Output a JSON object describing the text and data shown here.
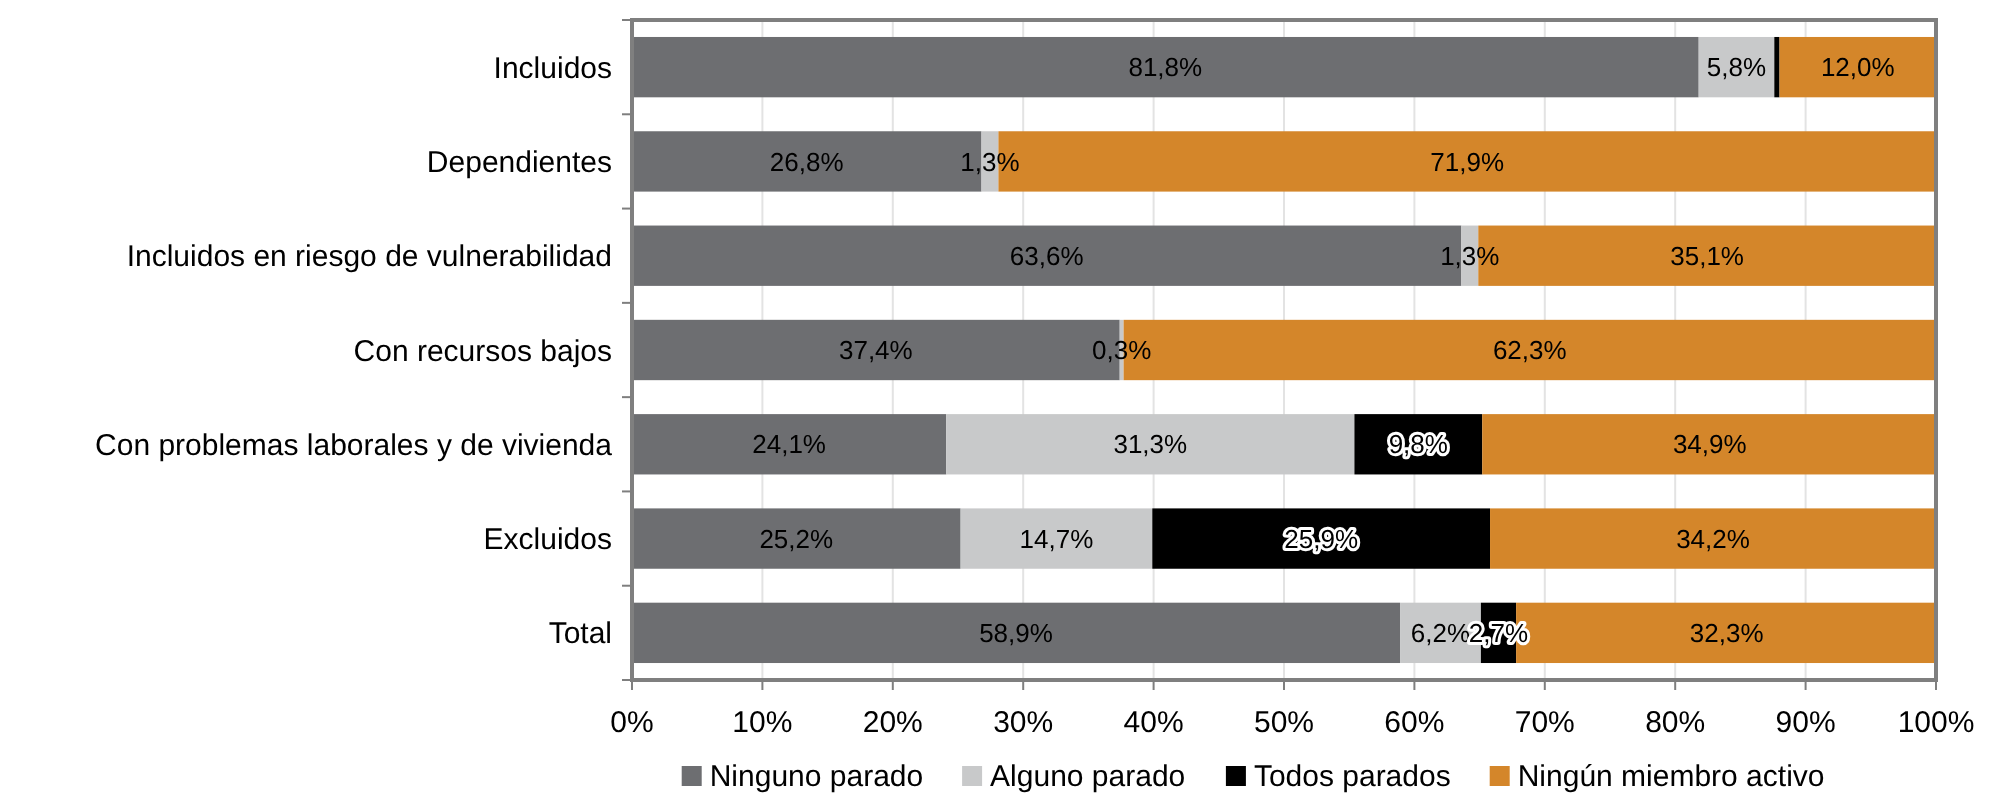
{
  "chart_data": {
    "type": "bar",
    "orientation": "horizontal",
    "stacked": true,
    "categories": [
      "Incluidos",
      "Dependientes",
      "Incluidos en riesgo de vulnerabilidad",
      "Con recursos bajos",
      "Con problemas laborales y de vivienda",
      "Excluidos",
      "Total"
    ],
    "series": [
      {
        "name": "Ninguno parado",
        "color": "#6d6e71",
        "values": [
          81.8,
          26.8,
          63.6,
          37.4,
          24.1,
          25.2,
          58.9
        ],
        "value_labels": [
          "81,8%",
          "26,8%",
          "63,6%",
          "37,4%",
          "24,1%",
          "25,2%",
          "58,9%"
        ]
      },
      {
        "name": "Alguno parado",
        "color": "#c8c9ca",
        "values": [
          5.8,
          1.3,
          1.3,
          0.3,
          31.3,
          14.7,
          6.2
        ],
        "value_labels": [
          "5,8%",
          "1,3%",
          "1,3%",
          "0,3%",
          "31,3%",
          "14,7%",
          "6,2%"
        ]
      },
      {
        "name": "Todos parados",
        "color": "#000000",
        "values": [
          0.4,
          0,
          0,
          0,
          9.8,
          25.9,
          2.7
        ],
        "value_labels": [
          null,
          null,
          null,
          null,
          "9,8%",
          "25,9%",
          "2,7%"
        ]
      },
      {
        "name": "Ningún miembro activo",
        "color": "#d4862a",
        "values": [
          12.0,
          71.9,
          35.1,
          62.3,
          34.9,
          34.2,
          32.3
        ],
        "value_labels": [
          "12,0%",
          "71,9%",
          "35,1%",
          "62,3%",
          "34,9%",
          "34,2%",
          "32,3%"
        ]
      }
    ],
    "xlim": [
      0,
      100
    ],
    "xticks": [
      {
        "value": 0,
        "label": "0%"
      },
      {
        "value": 10,
        "label": "10%"
      },
      {
        "value": 20,
        "label": "20%"
      },
      {
        "value": 30,
        "label": "30%"
      },
      {
        "value": 40,
        "label": "40%"
      },
      {
        "value": 50,
        "label": "50%"
      },
      {
        "value": 60,
        "label": "60%"
      },
      {
        "value": 70,
        "label": "70%"
      },
      {
        "value": 80,
        "label": "80%"
      },
      {
        "value": 90,
        "label": "90%"
      },
      {
        "value": 100,
        "label": "100%"
      }
    ],
    "grid": "x",
    "legend": "bottom"
  }
}
